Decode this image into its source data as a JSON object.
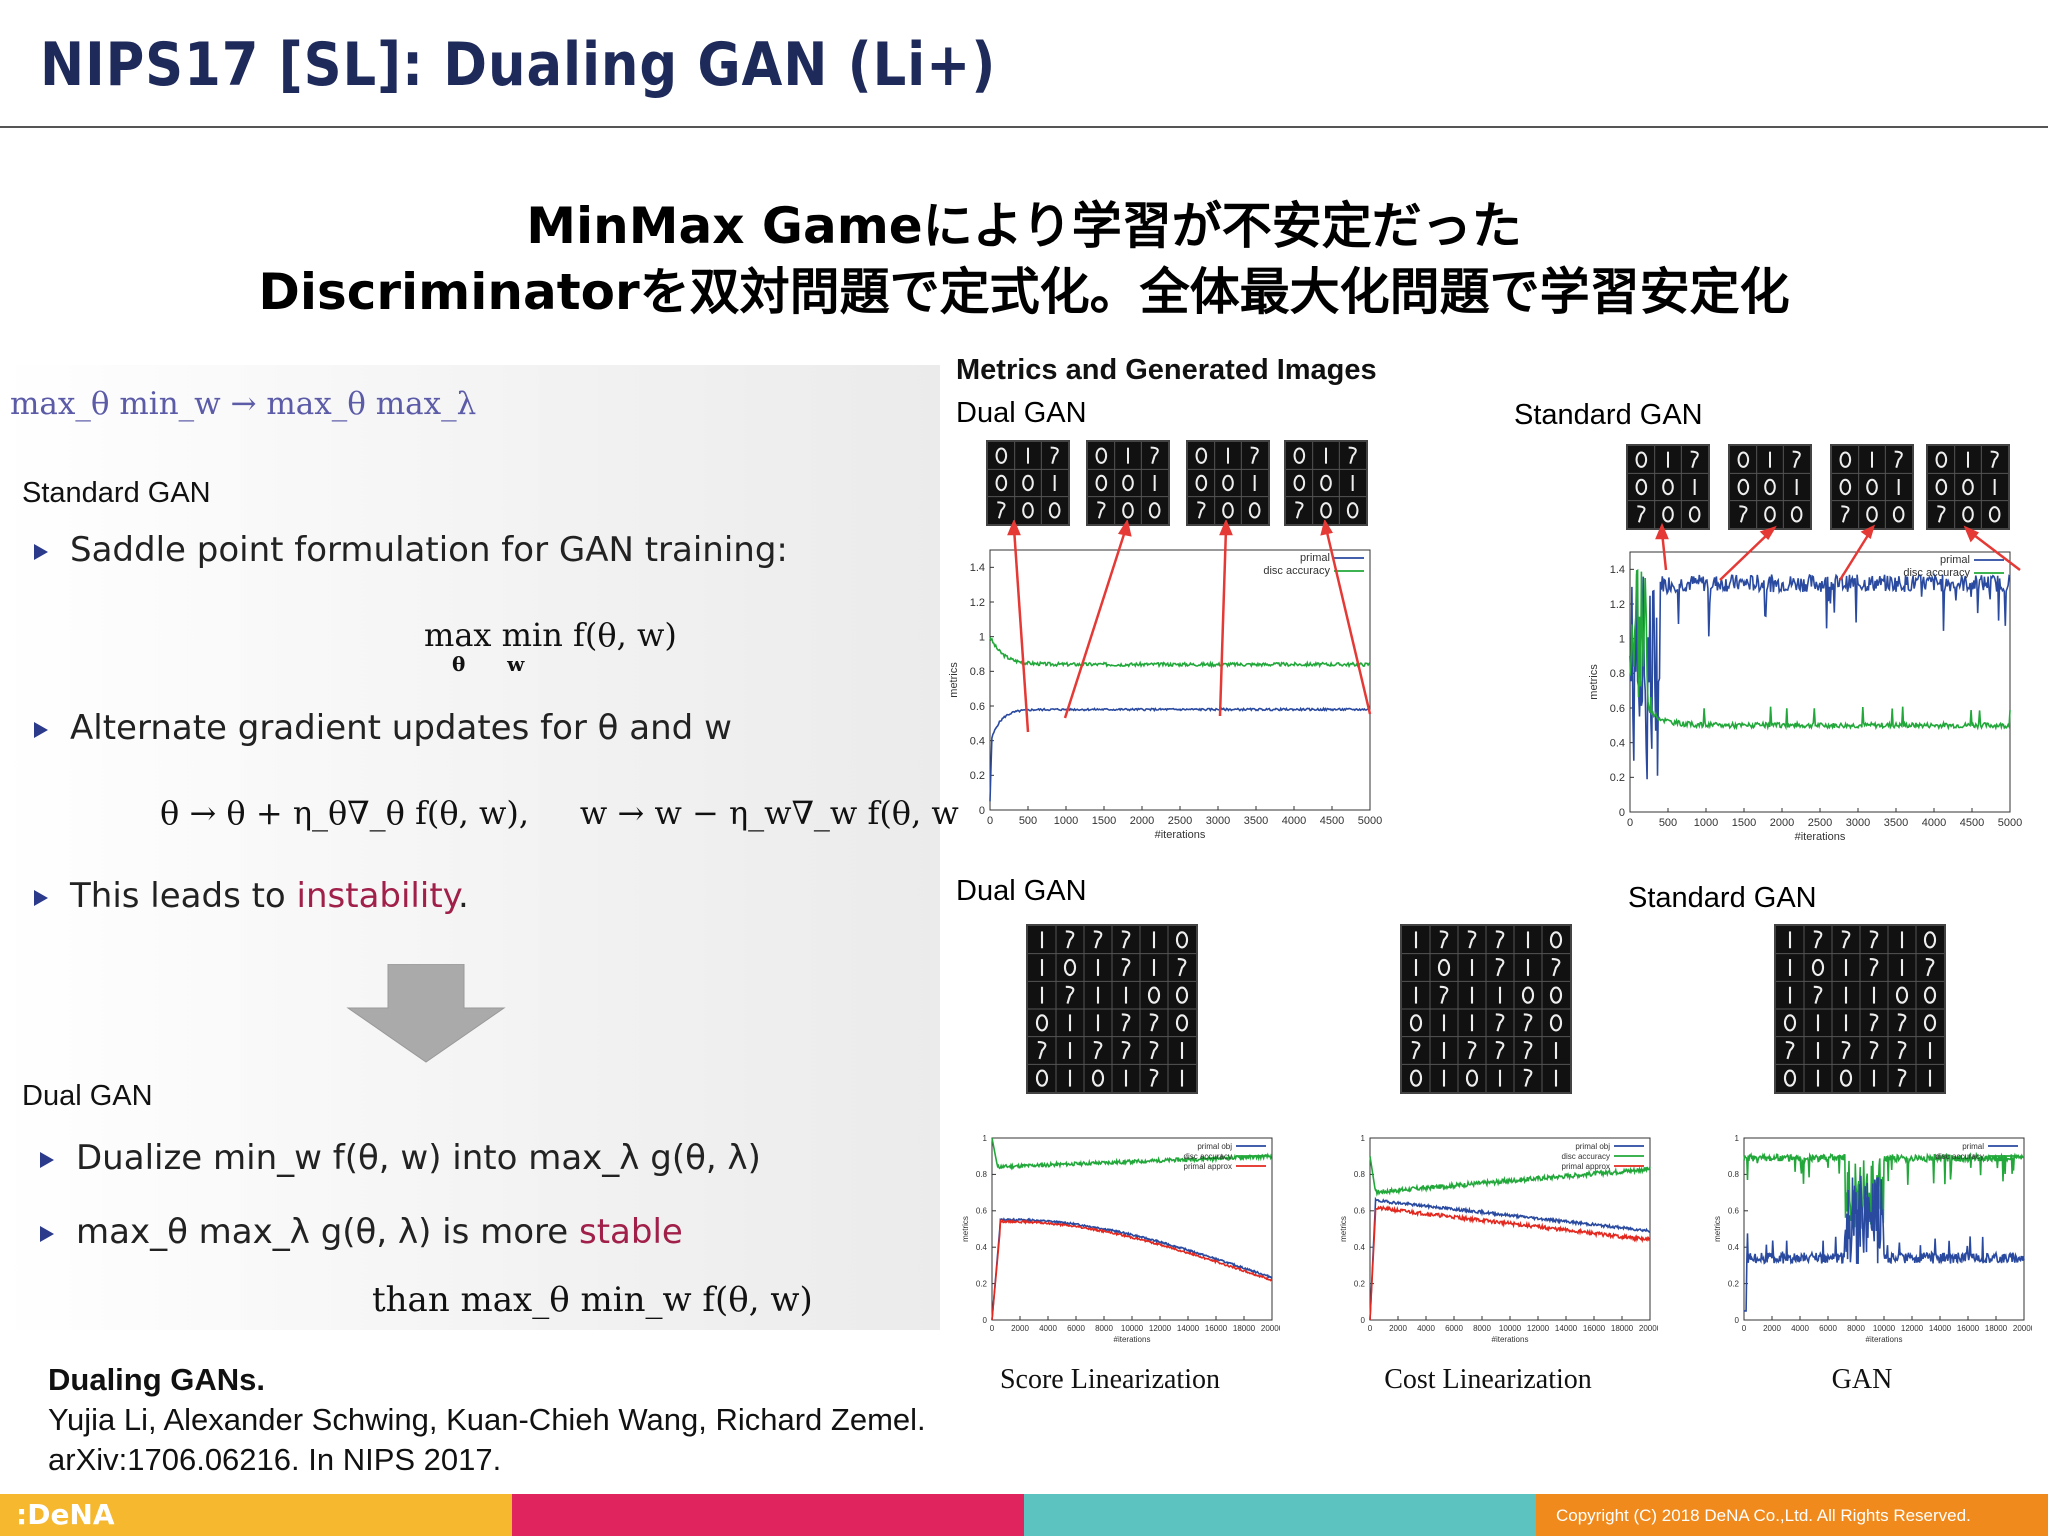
{
  "slide": {
    "title": "NIPS17 [SL]: Dualing GAN (Li+)",
    "headline_1": "MinMax Gameにより学習が不安定だった",
    "headline_2": "Discriminatorを双対問題で定式化。全体最大化問題で学習安定化"
  },
  "left": {
    "top_formula": "max_θ min_w → max_θ max_λ",
    "standard_label": "Standard GAN",
    "bullet1": "Saddle point formulation for GAN training:",
    "formula1": "max min f(θ, w)",
    "formula1_sub": "θ      w",
    "bullet2": "Alternate gradient updates for θ and w",
    "formula2": "θ → θ + η_θ∇_θ f(θ, w),     w → w − η_w∇_w f(θ, w",
    "bullet3_prefix": "This leads to ",
    "bullet3_hl": "instability",
    "bullet3_suffix": ".",
    "dual_label": "Dual GAN",
    "bullet4": "Dualize min_w f(θ, w) into max_λ g(θ, λ)",
    "bullet5_prefix": "max_θ max_λ g(θ, λ) is more ",
    "bullet5_hl": "stable",
    "bullet5_line2": "than max_θ min_w f(θ, w)"
  },
  "right": {
    "metrics_title": "Metrics and Generated Images",
    "dual_gan_top": "Dual GAN",
    "standard_gan_top": "Standard GAN",
    "dual_gan_bottom": "Dual GAN",
    "standard_gan_bottom": "Standard GAN",
    "caption_1": "Score Linearization",
    "caption_2": "Cost Linearization",
    "caption_3": "GAN",
    "legend_primal": "primal",
    "legend_disc": "disc accuracy",
    "legend_primal_obj": "primal obj",
    "legend_primal_approx": "primal approx",
    "xlabel": "#iterations",
    "ylabel": "metrics",
    "xticks_small": [
      "0",
      "500",
      "1000",
      "1500",
      "2000",
      "2500",
      "3000",
      "3500",
      "4000",
      "4500",
      "5000"
    ],
    "yticks_small": [
      "0",
      "0.2",
      "0.4",
      "0.6",
      "0.8",
      "1",
      "1.2",
      "1.4"
    ],
    "xticks_large": [
      "0",
      "2000",
      "4000",
      "6000",
      "8000",
      "10000",
      "12000",
      "14000",
      "16000",
      "18000",
      "20000"
    ],
    "yticks_large": [
      "0",
      "0.2",
      "0.4",
      "0.6",
      "0.8",
      "1"
    ]
  },
  "reference": {
    "title": "Dualing GANs.",
    "authors": "Yujia Li, Alexander Schwing, Kuan-Chieh Wang, Richard Zemel.",
    "venue": "arXiv:1706.06216. In NIPS 2017."
  },
  "footer": {
    "logo": ":DeNA",
    "copyright": "Copyright (C) 2018 DeNA Co.,Ltd. All Rights Reserved.",
    "colors": [
      "#f5b82e",
      "#e0245e",
      "#5cc3c0",
      "#f08a1c"
    ]
  }
}
